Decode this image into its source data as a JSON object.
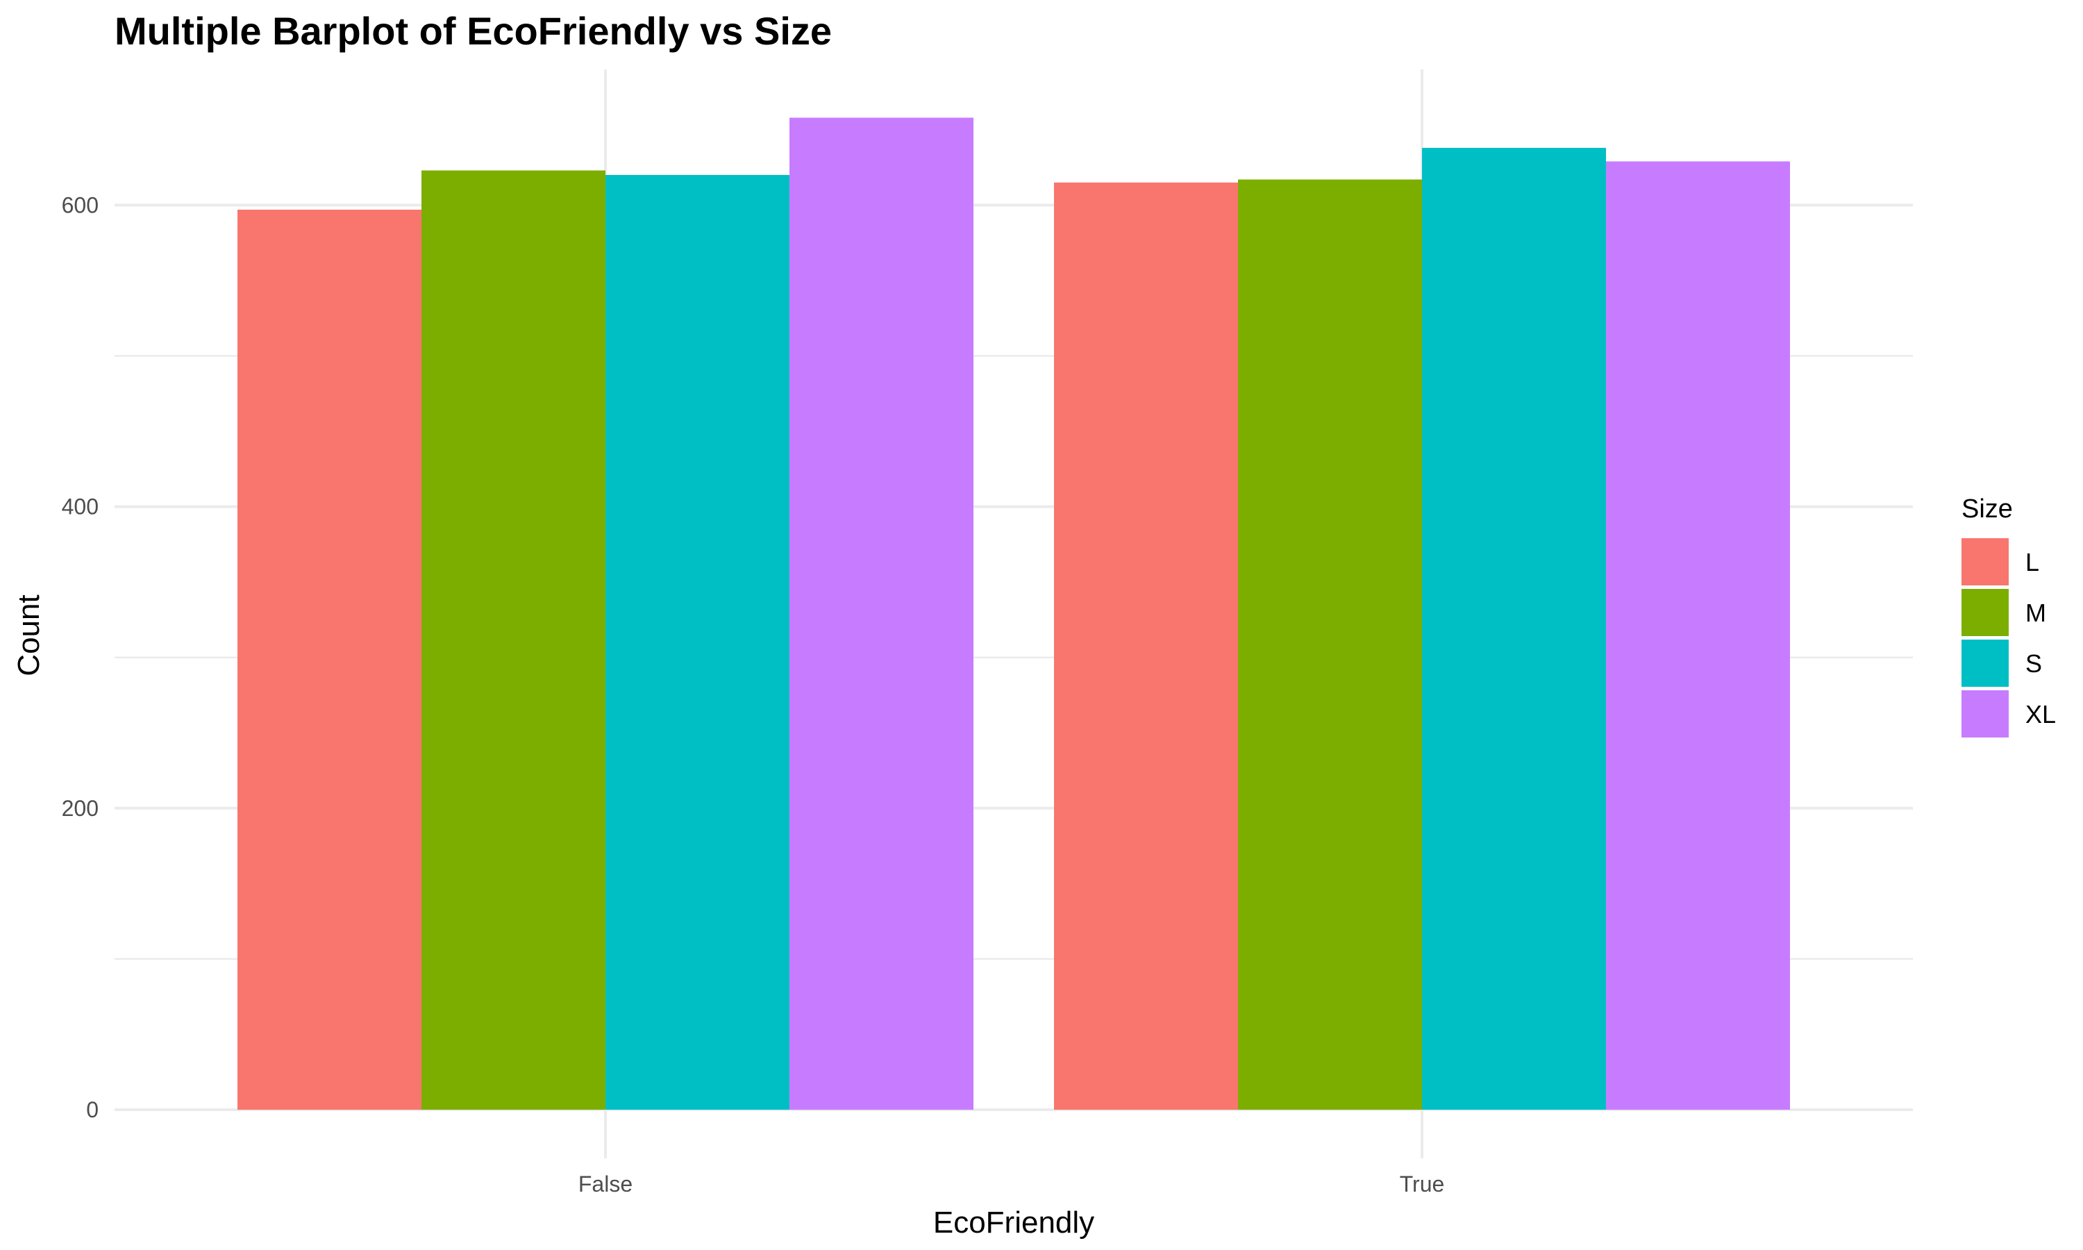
{
  "chart_data": {
    "type": "bar",
    "title": "Multiple Barplot of EcoFriendly vs Size",
    "xlabel": "EcoFriendly",
    "ylabel": "Count",
    "categories": [
      "False",
      "True"
    ],
    "ylim": [
      0,
      690
    ],
    "yticks": [
      0,
      200,
      400,
      600
    ],
    "grid": true,
    "legend": {
      "title": "Size",
      "placement": "right"
    },
    "series": [
      {
        "name": "L",
        "color": "#F8766D",
        "values": [
          597,
          615
        ]
      },
      {
        "name": "M",
        "color": "#7CAE00",
        "values": [
          623,
          617
        ]
      },
      {
        "name": "S",
        "color": "#00BFC4",
        "values": [
          620,
          638
        ]
      },
      {
        "name": "XL",
        "color": "#C77CFF",
        "values": [
          658,
          629
        ]
      }
    ]
  }
}
